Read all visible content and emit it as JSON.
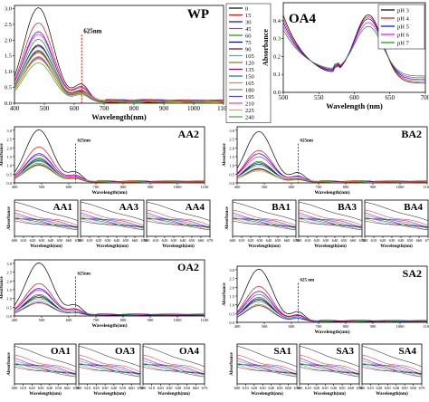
{
  "colors": [
    "#000000",
    "#ff0000",
    "#0000ff",
    "#ff00ff",
    "#00a000",
    "#000080",
    "#800000",
    "#00c8c8",
    "#808000",
    "#800080",
    "#008080",
    "#ff8000",
    "#808080",
    "#4040ff",
    "#ff4080",
    "#c0c000",
    "#40a040"
  ],
  "chart_data": [
    {
      "id": "WP",
      "type": "line",
      "title": "WP",
      "xlabel": "Wavelength(nm)",
      "ylabel": "Absorbance",
      "xlim": [
        400,
        1100
      ],
      "ylim": [
        0,
        3.1
      ],
      "xticks": [
        400,
        500,
        600,
        700,
        800,
        900,
        1000,
        1100
      ],
      "yticks": [
        0.0,
        0.5,
        1.0,
        1.5,
        2.0,
        2.5,
        3.0
      ],
      "annotation": {
        "text": "625nm",
        "x": 625
      },
      "legend": {
        "position": "right",
        "entries": [
          "0",
          "15",
          "30",
          "45",
          "60",
          "75",
          "90",
          "105",
          "120",
          "135",
          "150",
          "165",
          "180",
          "195",
          "210",
          "225",
          "240"
        ]
      },
      "peak_x": 480,
      "series_peaks": [
        3.0,
        2.5,
        2.2,
        2.1,
        2.0,
        1.8,
        1.75,
        1.7,
        1.65,
        1.6,
        1.55,
        1.5,
        1.45,
        1.4,
        1.35,
        1.3,
        1.25
      ]
    },
    {
      "id": "OA4",
      "type": "line",
      "title": "OA4",
      "xlabel": "Wavelength (nm)",
      "ylabel": "Absorbance",
      "xlim": [
        500,
        700
      ],
      "ylim": [
        0,
        0.5
      ],
      "xticks": [
        500,
        550,
        600,
        650,
        700
      ],
      "yticks": [
        0.0,
        0.1,
        0.2,
        0.3,
        0.4
      ],
      "legend": {
        "position": "top-right",
        "entries": [
          "pH 3",
          "pH 4",
          "pH 5",
          "pH 6",
          "pH 7"
        ]
      },
      "peak_x": 620,
      "series_peaks": [
        0.37,
        0.35,
        0.33,
        0.3,
        0.27
      ]
    },
    {
      "id": "AA2",
      "type": "line",
      "title": "AA2",
      "xlabel": "Wavelength(nm)",
      "ylabel": "Absorbance",
      "xlim": [
        400,
        1100
      ],
      "ylim": [
        0,
        3.2
      ],
      "xticks": [
        400,
        500,
        600,
        700,
        800,
        900,
        1000,
        1100
      ],
      "yticks": [
        0.0,
        0.5,
        1.0,
        1.5,
        2.0,
        2.5,
        3.0
      ],
      "annotation": {
        "text": "625nm",
        "x": 625
      },
      "peak_x": 490,
      "series_peaks": [
        3.0,
        2.0,
        1.6,
        1.5,
        1.4,
        1.3,
        1.2,
        1.15,
        1.1,
        1.0,
        0.95,
        0.9
      ]
    },
    {
      "id": "BA2",
      "type": "line",
      "title": "BA2",
      "xlabel": "Wavelength(nm)",
      "ylabel": "Absorbance",
      "xlim": [
        400,
        1100
      ],
      "ylim": [
        0,
        3.2
      ],
      "xticks": [
        400,
        500,
        600,
        700,
        800,
        900,
        1000,
        1100
      ],
      "yticks": [
        0.0,
        0.5,
        1.0,
        1.5,
        2.0,
        2.5,
        3.0
      ],
      "annotation": {
        "text": "625nm",
        "x": 625
      },
      "peak_x": 480,
      "series_peaks": [
        2.9,
        1.8,
        1.6,
        1.4,
        1.2,
        1.1,
        1.0,
        0.9,
        0.8,
        0.75,
        0.7,
        0.6
      ]
    },
    {
      "id": "AA1",
      "type": "line",
      "title": "AA1",
      "xlabel": "Wavelength(nm)",
      "ylabel": "Absorbance",
      "xlim": [
        600,
        670
      ],
      "xticks": [
        600,
        610,
        620,
        630,
        640,
        650,
        660,
        670
      ],
      "series_peaks": [
        0.95,
        0.7,
        0.62,
        0.58,
        0.55,
        0.52,
        0.5,
        0.48,
        0.45,
        0.42
      ]
    },
    {
      "id": "AA3",
      "type": "line",
      "title": "AA3",
      "xlabel": "Wavelength(nm)",
      "xlim": [
        600,
        670
      ],
      "xticks": [
        600,
        610,
        620,
        630,
        640,
        650,
        660,
        670
      ],
      "series_peaks": [
        0.95,
        0.7,
        0.62,
        0.58,
        0.55,
        0.52,
        0.5,
        0.48,
        0.45,
        0.42
      ]
    },
    {
      "id": "AA4",
      "type": "line",
      "title": "AA4",
      "xlabel": "Wavelength(nm)",
      "xlim": [
        600,
        670
      ],
      "xticks": [
        600,
        610,
        620,
        630,
        640,
        650,
        660,
        670
      ],
      "series_peaks": [
        0.95,
        0.7,
        0.62,
        0.58,
        0.55,
        0.52,
        0.5,
        0.48,
        0.45,
        0.42
      ]
    },
    {
      "id": "BA1",
      "type": "line",
      "title": "BA1",
      "xlabel": "Wavelength(nm)",
      "ylabel": "Absorbance",
      "xlim": [
        600,
        670
      ],
      "xticks": [
        600,
        610,
        620,
        630,
        640,
        650,
        660,
        670
      ],
      "series_peaks": [
        0.95,
        0.7,
        0.62,
        0.58,
        0.55,
        0.52,
        0.5,
        0.48,
        0.45,
        0.42
      ]
    },
    {
      "id": "BA3",
      "type": "line",
      "title": "BA3",
      "xlabel": "Wavelength(nm)",
      "xlim": [
        600,
        670
      ],
      "xticks": [
        600,
        610,
        620,
        630,
        640,
        650,
        660,
        670
      ],
      "series_peaks": [
        0.95,
        0.7,
        0.62,
        0.58,
        0.55,
        0.52,
        0.5,
        0.48,
        0.45,
        0.42
      ]
    },
    {
      "id": "BA4",
      "type": "line",
      "title": "BA4",
      "xlabel": "Wavelength(nm)",
      "xlim": [
        600,
        670
      ],
      "xticks": [
        600,
        610,
        620,
        630,
        640,
        650,
        660,
        670
      ],
      "series_peaks": [
        0.95,
        0.7,
        0.62,
        0.58,
        0.55,
        0.52,
        0.5,
        0.48,
        0.45,
        0.42
      ]
    },
    {
      "id": "OA2",
      "type": "line",
      "title": "OA2",
      "xlabel": "Wavelength(nm)",
      "ylabel": "Absorbance",
      "xlim": [
        400,
        1100
      ],
      "ylim": [
        0,
        3.2
      ],
      "xticks": [
        400,
        500,
        600,
        700,
        800,
        900,
        1000,
        1100
      ],
      "yticks": [
        0.0,
        0.5,
        1.0,
        1.5,
        2.0,
        2.5,
        3.0
      ],
      "annotation": {
        "text": "625nm",
        "x": 625
      },
      "peak_x": 490,
      "series_peaks": [
        3.0,
        1.8,
        1.5,
        1.4,
        1.2,
        1.1,
        1.0,
        0.9,
        0.8,
        0.7
      ]
    },
    {
      "id": "SA2",
      "type": "line",
      "title": "SA2",
      "xlabel": "Wavelength(nm)",
      "ylabel": "Absorbance",
      "xlim": [
        400,
        1100
      ],
      "ylim": [
        0,
        3.2
      ],
      "xticks": [
        400,
        500,
        600,
        700,
        800,
        900,
        1000,
        1100
      ],
      "yticks": [
        0.0,
        0.5,
        1.0,
        1.5,
        2.0,
        2.5,
        3.0
      ],
      "annotation": {
        "text": "625 nm",
        "x": 625
      },
      "peak_x": 480,
      "series_peaks": [
        3.0,
        2.0,
        1.7,
        1.5,
        1.4,
        1.3,
        1.2,
        1.1,
        1.0,
        0.9
      ]
    },
    {
      "id": "OA1",
      "type": "line",
      "title": "OA1",
      "xlabel": "Wavelength(nm)",
      "ylabel": "Absorbance",
      "xlim": [
        600,
        670
      ],
      "xticks": [
        600,
        610,
        620,
        630,
        640,
        650,
        660,
        670
      ],
      "series_peaks": [
        0.95,
        0.7,
        0.62,
        0.58,
        0.55,
        0.52,
        0.5,
        0.48,
        0.45,
        0.42
      ]
    },
    {
      "id": "OA3",
      "type": "line",
      "title": "OA3",
      "xlabel": "Wavelength(nm)",
      "xlim": [
        600,
        670
      ],
      "xticks": [
        600,
        610,
        620,
        630,
        640,
        650,
        660,
        670
      ],
      "series_peaks": [
        0.95,
        0.7,
        0.62,
        0.58,
        0.55,
        0.52,
        0.5,
        0.48,
        0.45,
        0.42
      ]
    },
    {
      "id": "OA4",
      "type": "line",
      "title": "OA4",
      "xlabel": "Wavelength(nm)",
      "xlim": [
        600,
        670
      ],
      "xticks": [
        600,
        610,
        620,
        630,
        640,
        650,
        660,
        670
      ],
      "series_peaks": [
        0.95,
        0.7,
        0.62,
        0.58,
        0.55,
        0.52,
        0.5,
        0.48,
        0.45,
        0.42
      ]
    },
    {
      "id": "SA1",
      "type": "line",
      "title": "SA1",
      "xlabel": "Wavelength(nm)",
      "ylabel": "Absorbance",
      "xlim": [
        600,
        670
      ],
      "xticks": [
        600,
        610,
        620,
        630,
        640,
        650,
        660,
        670
      ],
      "series_peaks": [
        0.95,
        0.7,
        0.62,
        0.58,
        0.55,
        0.52,
        0.5,
        0.48,
        0.45,
        0.42
      ]
    },
    {
      "id": "SA3",
      "type": "line",
      "title": "SA3",
      "xlabel": "Wavelength(nm)",
      "xlim": [
        600,
        670
      ],
      "xticks": [
        600,
        610,
        620,
        630,
        640,
        650,
        660,
        670
      ],
      "series_peaks": [
        0.95,
        0.7,
        0.62,
        0.58,
        0.55,
        0.52,
        0.5,
        0.48,
        0.45,
        0.42
      ]
    },
    {
      "id": "SA4",
      "type": "line",
      "title": "SA4",
      "xlabel": "Wavelength(nm)",
      "xlim": [
        600,
        670
      ],
      "xticks": [
        600,
        610,
        620,
        630,
        640,
        650,
        660,
        670
      ],
      "series_peaks": [
        0.95,
        0.7,
        0.62,
        0.58,
        0.55,
        0.52,
        0.5,
        0.48,
        0.45,
        0.42
      ]
    }
  ]
}
